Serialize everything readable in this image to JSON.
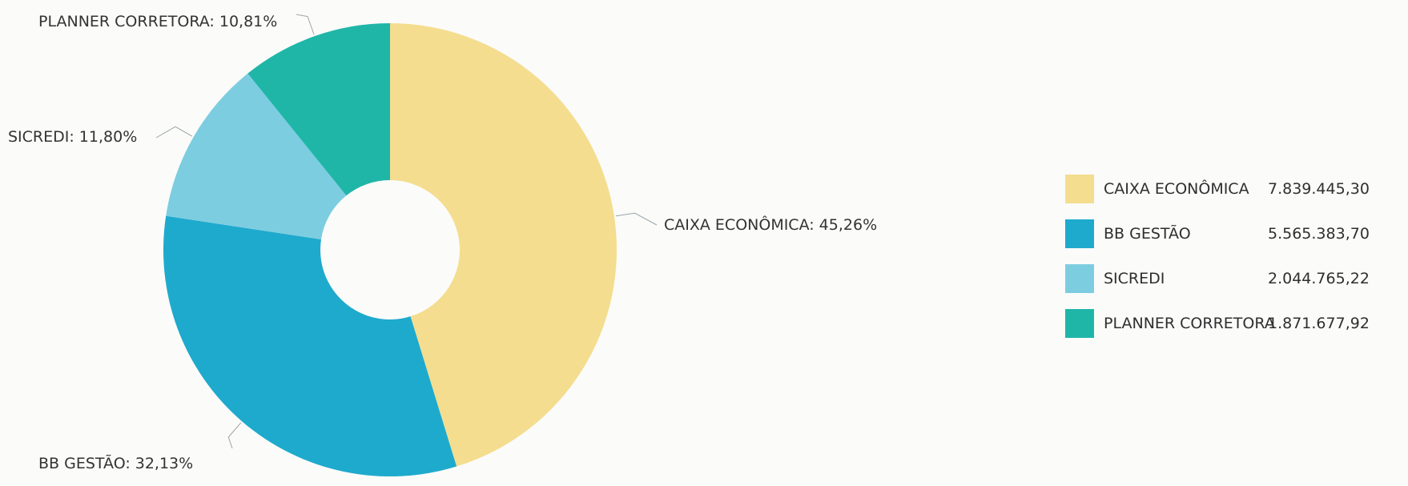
{
  "chart_data": {
    "type": "pie",
    "style": "donut",
    "categories": [
      "CAIXA ECONÔMICA",
      "BB GESTÃO",
      "SICREDI",
      "PLANNER CORRETORA"
    ],
    "values": [
      7839445.3,
      5565383.7,
      2044765.22,
      1871677.92
    ],
    "percentages": [
      45.26,
      32.13,
      11.8,
      10.81
    ],
    "colors": [
      "#f4dd8e",
      "#1eaacd",
      "#7dcde0",
      "#1fb6a8"
    ],
    "slice_labels": [
      "CAIXA ECONÔMICA: 45,26%",
      "BB GESTÃO: 32,13%",
      "SICREDI: 11,80%",
      "PLANNER CORRETORA: 10,81%"
    ],
    "legend_placement": "right",
    "legend": [
      {
        "label": "CAIXA ECONÔMICA",
        "value": "7.839.445,30",
        "color": "#f4dd8e"
      },
      {
        "label": "BB GESTÃO",
        "value": "5.565.383,70",
        "color": "#1eaacd"
      },
      {
        "label": "SICREDI",
        "value": "2.044.765,22",
        "color": "#7dcde0"
      },
      {
        "label": "PLANNER CORRETORA",
        "value": "1.871.677,92",
        "color": "#1fb6a8"
      }
    ]
  }
}
